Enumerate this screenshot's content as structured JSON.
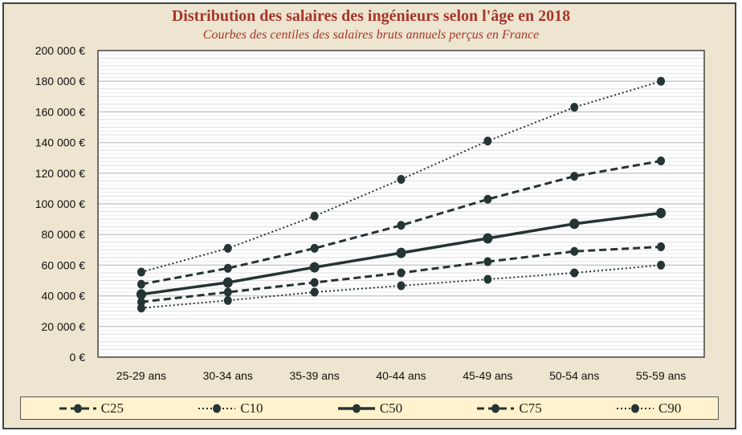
{
  "chart_data": {
    "type": "line",
    "title": "Distribution des salaires des ingénieurs selon l'âge en 2018",
    "subtitle": "Courbes des centiles des salaires bruts annuels perçus en France",
    "xlabel": "",
    "ylabel": "",
    "categories": [
      "25-29 ans",
      "30-34 ans",
      "35-39 ans",
      "40-44 ans",
      "45-49 ans",
      "50-54 ans",
      "55-59 ans"
    ],
    "ylim": [
      0,
      200000
    ],
    "yticks": [
      0,
      20000,
      40000,
      60000,
      80000,
      100000,
      120000,
      140000,
      160000,
      180000,
      200000
    ],
    "ytick_labels": [
      "0 €",
      "20 000 €",
      "40 000 €",
      "60 000 €",
      "80 000 €",
      "100 000 €",
      "120 000 €",
      "140 000 €",
      "160 000 €",
      "180 000 €",
      "200 000 €"
    ],
    "grid": true,
    "legend_position": "bottom",
    "series": [
      {
        "name": "C25",
        "style": "dashed",
        "values": [
          36000,
          42400,
          48700,
          55000,
          62300,
          69000,
          72000
        ]
      },
      {
        "name": "C10",
        "style": "dotted",
        "values": [
          32000,
          37000,
          42400,
          46600,
          50800,
          55000,
          60000
        ]
      },
      {
        "name": "C50",
        "style": "solid",
        "values": [
          41000,
          48700,
          58600,
          68000,
          77500,
          87000,
          94000
        ]
      },
      {
        "name": "C75",
        "style": "dashed",
        "values": [
          47600,
          58000,
          71000,
          86000,
          103000,
          118000,
          128000
        ]
      },
      {
        "name": "C90",
        "style": "dotted",
        "values": [
          55500,
          71000,
          92000,
          116000,
          141000,
          163000,
          180000
        ]
      }
    ],
    "colors": {
      "line": "#253435",
      "title": "#a8352c"
    }
  }
}
